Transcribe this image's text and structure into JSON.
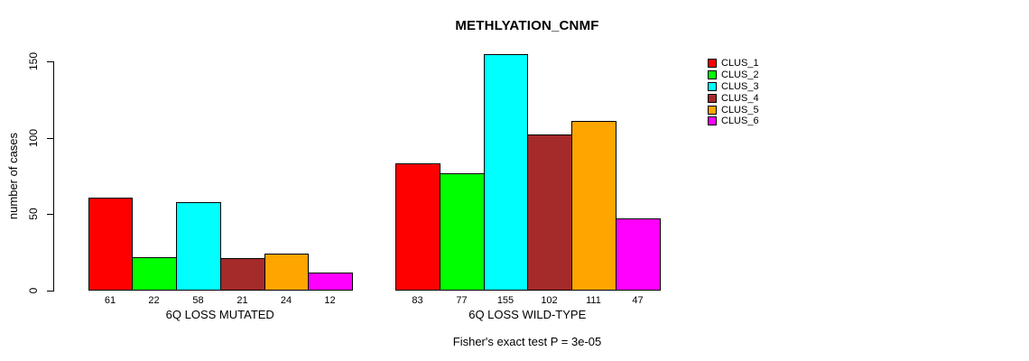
{
  "chart_data": {
    "type": "bar",
    "title": "METHLYATION_CNMF",
    "ylabel": "number of cases",
    "xlabel": "",
    "ylim": [
      0,
      155
    ],
    "yticks": [
      0,
      50,
      100,
      150
    ],
    "grid": false,
    "legend_position": "right",
    "bar_value_labels": true,
    "categories": [
      "6Q LOSS MUTATED",
      "6Q LOSS WILD-TYPE"
    ],
    "series": [
      {
        "name": "CLUS_1",
        "color": "#FF0000",
        "values": [
          61,
          83
        ]
      },
      {
        "name": "CLUS_2",
        "color": "#00FF00",
        "values": [
          22,
          77
        ]
      },
      {
        "name": "CLUS_3",
        "color": "#00FFFF",
        "values": [
          58,
          155
        ]
      },
      {
        "name": "CLUS_4",
        "color": "#A52A2A",
        "values": [
          21,
          102
        ]
      },
      {
        "name": "CLUS_5",
        "color": "#FFA500",
        "values": [
          24,
          111
        ]
      },
      {
        "name": "CLUS_6",
        "color": "#FF00FF",
        "values": [
          12,
          47
        ]
      }
    ],
    "annotation": "Fisher's exact test P = 3e-05"
  }
}
